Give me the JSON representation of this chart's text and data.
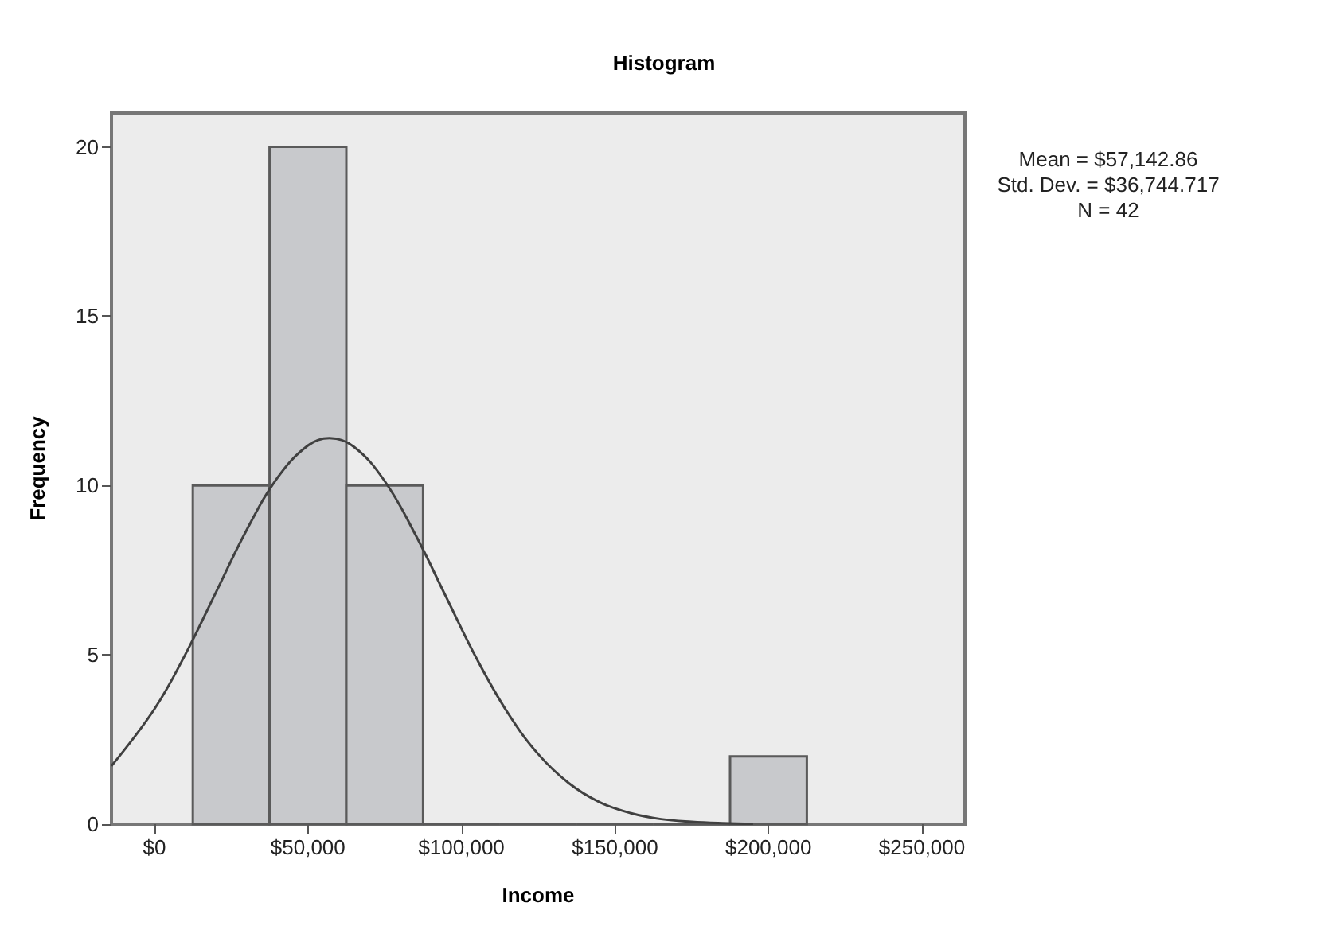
{
  "chart_data": {
    "type": "histogram",
    "title": "Histogram",
    "xlabel": "Income",
    "ylabel": "Frequency",
    "annotations": [
      "Mean = $57,142.86",
      "Std. Dev. = $36,744.717",
      "N = 42"
    ],
    "bins": [
      12500,
      37500,
      62500,
      87500,
      112500,
      137500,
      162500,
      187500,
      212500
    ],
    "values": [
      10,
      20,
      10,
      0,
      0,
      0,
      0,
      2
    ],
    "color": "#c8c9cc",
    "series": [
      {
        "type": "line",
        "color": "#404040",
        "x": [
          -14000,
          0,
          10000,
          20000,
          30000,
          40000,
          50000,
          57000,
          65000,
          75000,
          85000,
          95000,
          105000,
          115000,
          125000,
          135000,
          145000,
          155000,
          165000,
          175000,
          185000,
          195000
        ],
        "values": [
          1.72,
          3.4,
          5.0,
          6.84,
          8.68,
          10.22,
          11.18,
          11.4,
          11.14,
          10.13,
          8.55,
          6.71,
          4.88,
          3.3,
          2.07,
          1.21,
          0.65,
          0.33,
          0.15,
          0.07,
          0.03,
          0.01
        ]
      }
    ],
    "marker": "none",
    "xlim": [
      -14000,
      264000
    ],
    "xticks": [
      {
        "value": 0,
        "label": "$0"
      },
      {
        "value": 50000,
        "label": "$50,000"
      },
      {
        "value": 100000,
        "label": "$100,000"
      },
      {
        "value": 150000,
        "label": "$150,000"
      },
      {
        "value": 200000,
        "label": "$200,000"
      },
      {
        "value": 250000,
        "label": "$250,000"
      }
    ],
    "ylim": [
      0,
      21
    ],
    "yticks": [
      0,
      5,
      10,
      15,
      20
    ],
    "grid": false,
    "legend": false
  }
}
